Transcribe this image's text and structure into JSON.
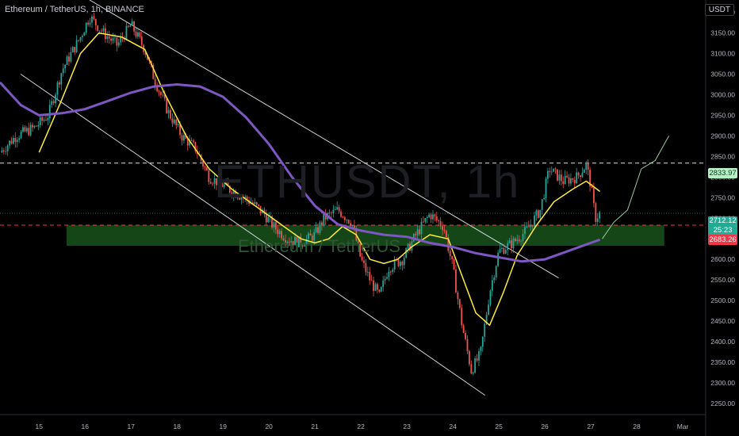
{
  "header": {
    "title": "Ethereum / TetherUS, 1h, BINANCE"
  },
  "watermark": {
    "symbol": "ETHUSDT, 1h",
    "name": "Ethereum / TetherUS"
  },
  "currency": "USDT",
  "price_tags": {
    "resistance": "2833.97",
    "last": "2712.12",
    "countdown": "25:23",
    "support": "2683.26"
  },
  "colors": {
    "up": "#26a69a",
    "down": "#ef5350",
    "ma_fast": "#ffeb3b",
    "ma_slow": "#7e57c2",
    "zone": "#1b5e20",
    "channel": "#d1d4dc"
  },
  "chart_data": {
    "type": "candlestick",
    "title": "Ethereum / TetherUS, 1h, BINANCE",
    "x_ticks": [
      "15",
      "16",
      "17",
      "18",
      "19",
      "20",
      "21",
      "22",
      "23",
      "24",
      "25",
      "26",
      "27",
      "28",
      "Mar"
    ],
    "y_ticks": [
      "3200.00",
      "3150.00",
      "3100.00",
      "3050.00",
      "3000.00",
      "2950.00",
      "2900.00",
      "2850.00",
      "2800.00",
      "2750.00",
      "2700.00",
      "2650.00",
      "2600.00",
      "2550.00",
      "2500.00",
      "2450.00",
      "2400.00",
      "2350.00",
      "2300.00",
      "2250.00"
    ],
    "ylim": [
      2225,
      3230
    ],
    "xlim": [
      14.15,
      29.5
    ],
    "price_path": [
      [
        14.15,
        2860
      ],
      [
        14.5,
        2900
      ],
      [
        14.9,
        2920
      ],
      [
        15.2,
        2950
      ],
      [
        15.5,
        3060
      ],
      [
        15.9,
        3140
      ],
      [
        16.1,
        3190
      ],
      [
        16.4,
        3150
      ],
      [
        16.7,
        3120
      ],
      [
        17.0,
        3170
      ],
      [
        17.3,
        3110
      ],
      [
        17.5,
        3040
      ],
      [
        17.8,
        2960
      ],
      [
        18.1,
        2900
      ],
      [
        18.4,
        2870
      ],
      [
        18.7,
        2800
      ],
      [
        19.0,
        2780
      ],
      [
        19.3,
        2760
      ],
      [
        19.6,
        2740
      ],
      [
        19.9,
        2710
      ],
      [
        20.1,
        2680
      ],
      [
        20.4,
        2650
      ],
      [
        20.7,
        2640
      ],
      [
        21.0,
        2660
      ],
      [
        21.2,
        2700
      ],
      [
        21.5,
        2720
      ],
      [
        21.8,
        2690
      ],
      [
        22.0,
        2600
      ],
      [
        22.2,
        2550
      ],
      [
        22.4,
        2510
      ],
      [
        22.6,
        2580
      ],
      [
        22.9,
        2600
      ],
      [
        23.2,
        2660
      ],
      [
        23.5,
        2710
      ],
      [
        23.8,
        2680
      ],
      [
        24.0,
        2580
      ],
      [
        24.2,
        2440
      ],
      [
        24.4,
        2330
      ],
      [
        24.6,
        2370
      ],
      [
        24.8,
        2520
      ],
      [
        25.0,
        2620
      ],
      [
        25.3,
        2640
      ],
      [
        25.6,
        2670
      ],
      [
        25.9,
        2720
      ],
      [
        26.1,
        2820
      ],
      [
        26.4,
        2790
      ],
      [
        26.7,
        2800
      ],
      [
        26.9,
        2830
      ],
      [
        27.0,
        2780
      ],
      [
        27.1,
        2700
      ],
      [
        27.2,
        2712
      ]
    ],
    "series": [
      {
        "name": "",
        "kind": "ma_fast",
        "values": [
          [
            15.0,
            2860
          ],
          [
            15.5,
            2990
          ],
          [
            15.9,
            3100
          ],
          [
            16.3,
            3150
          ],
          [
            16.8,
            3140
          ],
          [
            17.3,
            3110
          ],
          [
            17.7,
            3010
          ],
          [
            18.2,
            2900
          ],
          [
            18.7,
            2820
          ],
          [
            19.2,
            2770
          ],
          [
            19.7,
            2730
          ],
          [
            20.2,
            2690
          ],
          [
            20.7,
            2650
          ],
          [
            21.0,
            2640
          ],
          [
            21.3,
            2650
          ],
          [
            21.6,
            2680
          ],
          [
            21.9,
            2660
          ],
          [
            22.2,
            2600
          ],
          [
            22.5,
            2590
          ],
          [
            22.8,
            2600
          ],
          [
            23.1,
            2630
          ],
          [
            23.5,
            2660
          ],
          [
            23.9,
            2650
          ],
          [
            24.2,
            2560
          ],
          [
            24.5,
            2470
          ],
          [
            24.8,
            2440
          ],
          [
            25.1,
            2520
          ],
          [
            25.4,
            2610
          ],
          [
            25.8,
            2680
          ],
          [
            26.2,
            2740
          ],
          [
            26.6,
            2770
          ],
          [
            26.9,
            2790
          ],
          [
            27.2,
            2765
          ]
        ]
      },
      {
        "name": "",
        "kind": "ma_slow",
        "values": [
          [
            14.15,
            3030
          ],
          [
            14.6,
            2975
          ],
          [
            15.0,
            2950
          ],
          [
            15.5,
            2955
          ],
          [
            16.0,
            2965
          ],
          [
            16.5,
            2985
          ],
          [
            17.0,
            3005
          ],
          [
            17.5,
            3020
          ],
          [
            18.0,
            3025
          ],
          [
            18.5,
            3020
          ],
          [
            19.0,
            2995
          ],
          [
            19.5,
            2945
          ],
          [
            20.0,
            2880
          ],
          [
            20.5,
            2800
          ],
          [
            21.0,
            2730
          ],
          [
            21.5,
            2685
          ],
          [
            22.0,
            2670
          ],
          [
            22.5,
            2660
          ],
          [
            23.0,
            2655
          ],
          [
            23.5,
            2640
          ],
          [
            24.0,
            2630
          ],
          [
            24.5,
            2615
          ],
          [
            25.0,
            2605
          ],
          [
            25.5,
            2595
          ],
          [
            26.0,
            2600
          ],
          [
            26.5,
            2620
          ],
          [
            27.0,
            2640
          ],
          [
            27.2,
            2648
          ]
        ]
      },
      {
        "name": "",
        "kind": "projection",
        "values": [
          [
            27.25,
            2650
          ],
          [
            27.5,
            2690
          ],
          [
            27.8,
            2720
          ],
          [
            28.1,
            2820
          ],
          [
            28.4,
            2840
          ],
          [
            28.7,
            2900
          ]
        ]
      }
    ],
    "channel_upper": [
      [
        16.1,
        3230
      ],
      [
        26.3,
        2555
      ]
    ],
    "channel_lower": [
      [
        14.6,
        3050
      ],
      [
        24.7,
        2270
      ]
    ],
    "levels": {
      "resistance": 2833.97,
      "support": 2683.26,
      "last": 2712.12
    },
    "zone": {
      "from": 15.6,
      "to": 28.6,
      "low": 2633,
      "high": 2683
    },
    "grid": false,
    "legend": "none"
  }
}
